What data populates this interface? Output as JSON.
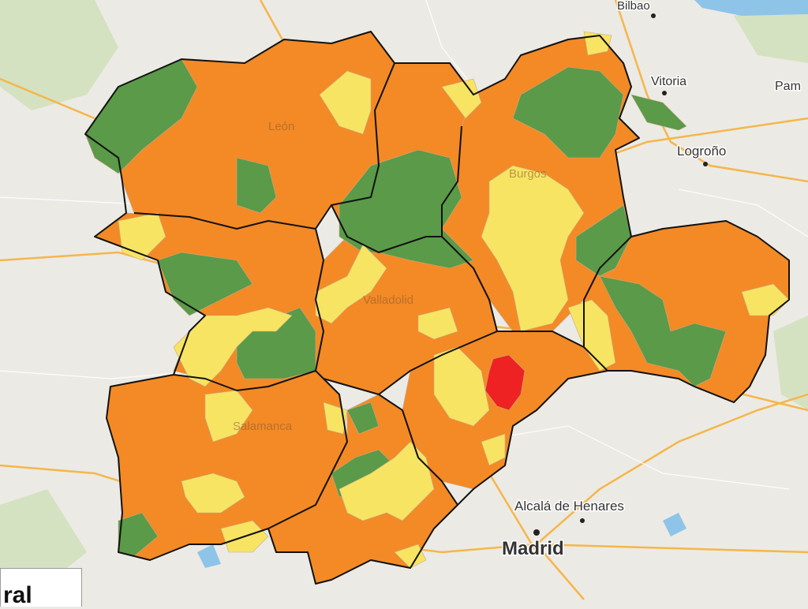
{
  "map": {
    "colors": {
      "background": "#eceae5",
      "park": "#cfe0b8",
      "road_major": "#f5b64a",
      "road_minor": "#ffffff",
      "water": "#8ec4e8",
      "orange": "#f38a25",
      "yellow": "#f7e463",
      "green": "#5a9a48",
      "red": "#ee2222",
      "boundary": "#111111",
      "municipal_border": "#c9a98a"
    },
    "cities": [
      {
        "name": "Bilbao",
        "size": "small"
      },
      {
        "name": "Vitoria",
        "size": "small"
      },
      {
        "name": "Pam",
        "size": "small"
      },
      {
        "name": "Logroño",
        "size": "small"
      },
      {
        "name": "Alcalá de Henares",
        "size": "small"
      },
      {
        "name": "Madrid",
        "size": "large"
      }
    ],
    "underlying_labels": [
      "León",
      "Burgos",
      "Valladolid",
      "Salamanca"
    ],
    "legend_text": "ral"
  }
}
